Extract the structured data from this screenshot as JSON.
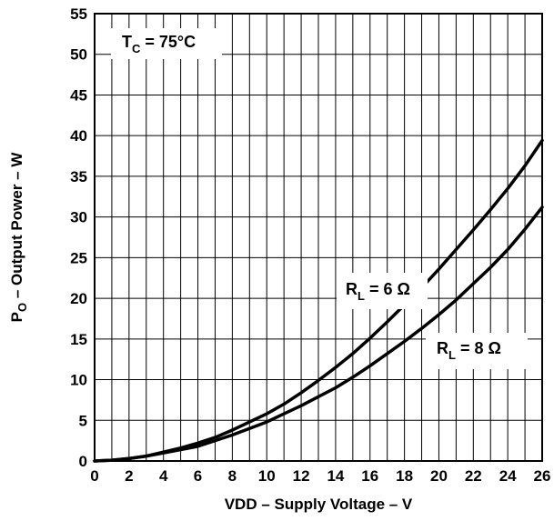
{
  "chart_data": {
    "type": "line",
    "xlabel": "VDD – Supply Voltage – V",
    "ylabel": {
      "main": "P",
      "sub": "O",
      "rest": " – Output Power – W"
    },
    "xlim": [
      0,
      26
    ],
    "ylim": [
      0,
      55
    ],
    "x_ticks": [
      0,
      2,
      4,
      6,
      8,
      10,
      12,
      14,
      16,
      18,
      20,
      22,
      24,
      26
    ],
    "y_ticks": [
      0,
      5,
      10,
      15,
      20,
      25,
      30,
      35,
      40,
      45,
      50,
      55
    ],
    "x_grid_step": 1,
    "y_grid_step": 5,
    "grid": true,
    "condition_label": {
      "main": "T",
      "sub": "C",
      "rest": " = 75°C"
    },
    "series": [
      {
        "name": "R_L = 6 Ω",
        "label": {
          "main": "R",
          "sub": "L",
          "rest": " = 6 Ω"
        },
        "color": "#000000",
        "x": [
          0,
          1,
          2,
          3,
          4,
          5,
          6,
          7,
          8,
          9,
          10,
          11,
          12,
          13,
          14,
          15,
          16,
          17,
          18,
          19,
          20,
          21,
          22,
          23,
          24,
          25,
          26
        ],
        "y": [
          0,
          0.1,
          0.3,
          0.6,
          1.1,
          1.6,
          2.2,
          2.9,
          3.8,
          4.8,
          5.8,
          7.0,
          8.4,
          9.9,
          11.5,
          13.2,
          15.1,
          17.1,
          19.2,
          21.3,
          23.6,
          26.0,
          28.4,
          30.9,
          33.5,
          36.3,
          39.4
        ]
      },
      {
        "name": "R_L = 8 Ω",
        "label": {
          "main": "R",
          "sub": "L",
          "rest": " = 8 Ω"
        },
        "color": "#000000",
        "x": [
          0,
          1,
          2,
          3,
          4,
          5,
          6,
          7,
          8,
          9,
          10,
          11,
          12,
          13,
          14,
          15,
          16,
          17,
          18,
          19,
          20,
          21,
          22,
          23,
          24,
          25,
          26
        ],
        "y": [
          0,
          0.1,
          0.3,
          0.6,
          1.0,
          1.4,
          1.8,
          2.5,
          3.2,
          4.0,
          4.8,
          5.8,
          6.8,
          7.9,
          9.0,
          10.3,
          11.7,
          13.2,
          14.7,
          16.3,
          18.0,
          19.8,
          21.8,
          23.8,
          26.0,
          28.5,
          31.2
        ]
      }
    ]
  }
}
